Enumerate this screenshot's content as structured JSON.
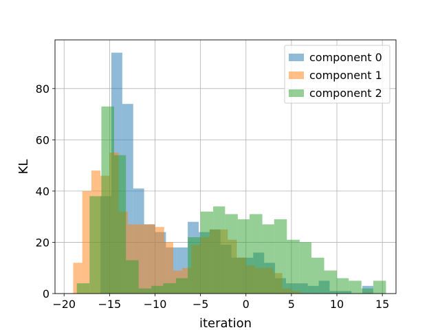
{
  "chart_data": {
    "type": "bar",
    "xlabel": "iteration",
    "ylabel": "KL",
    "xlim": [
      -21,
      16.5
    ],
    "ylim": [
      0,
      99
    ],
    "xticks": [
      -20,
      -15,
      -10,
      -5,
      0,
      5,
      10,
      15
    ],
    "yticks": [
      0,
      20,
      40,
      60,
      80
    ],
    "grid": true,
    "legend_position": "top-right",
    "opacity": 0.5,
    "series": [
      {
        "name": "component 0",
        "color": "#1f77b4",
        "bins": [
          [
            -16.0,
            -14.8,
            38
          ],
          [
            -14.8,
            -13.6,
            94
          ],
          [
            -13.6,
            -12.4,
            74
          ],
          [
            -12.4,
            -11.2,
            41
          ],
          [
            -11.2,
            -10.0,
            27
          ],
          [
            -10.0,
            -8.8,
            24
          ],
          [
            -8.8,
            -7.6,
            18
          ],
          [
            -7.6,
            -6.4,
            18
          ],
          [
            -6.4,
            -5.2,
            28
          ],
          [
            -5.2,
            -4.0,
            24
          ],
          [
            -4.0,
            -2.8,
            25
          ],
          [
            -2.8,
            -1.6,
            19
          ],
          [
            -1.6,
            -0.4,
            14
          ],
          [
            -0.4,
            0.8,
            14
          ],
          [
            0.8,
            2.0,
            16
          ],
          [
            2.0,
            3.2,
            12
          ],
          [
            3.2,
            4.4,
            6
          ],
          [
            4.4,
            5.6,
            4
          ],
          [
            5.6,
            6.8,
            4
          ],
          [
            6.8,
            8.0,
            3
          ],
          [
            8.0,
            9.2,
            5
          ],
          [
            9.2,
            10.4,
            1
          ],
          [
            10.4,
            11.6,
            1
          ],
          [
            11.6,
            12.8,
            0
          ],
          [
            12.8,
            14.0,
            3
          ]
        ]
      },
      {
        "name": "component 1",
        "color": "#ff7f0e",
        "bins": [
          [
            -19.0,
            -18.0,
            12
          ],
          [
            -18.0,
            -17.0,
            40
          ],
          [
            -17.0,
            -16.0,
            48
          ],
          [
            -16.0,
            -15.0,
            46
          ],
          [
            -15.0,
            -14.0,
            55
          ],
          [
            -14.0,
            -13.0,
            32
          ],
          [
            -13.0,
            -12.0,
            27
          ],
          [
            -12.0,
            -11.0,
            27
          ],
          [
            -11.0,
            -10.0,
            27
          ],
          [
            -10.0,
            -9.0,
            26
          ],
          [
            -9.0,
            -8.0,
            20
          ],
          [
            -8.0,
            -7.0,
            9
          ],
          [
            -7.0,
            -6.0,
            10
          ],
          [
            -6.0,
            -5.0,
            19
          ],
          [
            -5.0,
            -4.0,
            22
          ],
          [
            -4.0,
            -3.0,
            25
          ],
          [
            -3.0,
            -2.0,
            25
          ],
          [
            -2.0,
            -1.0,
            21
          ],
          [
            -1.0,
            0.0,
            14
          ],
          [
            0.0,
            1.0,
            11
          ],
          [
            1.0,
            2.0,
            10
          ],
          [
            2.0,
            3.0,
            10
          ],
          [
            3.0,
            4.0,
            8
          ],
          [
            4.0,
            5.0,
            2
          ],
          [
            5.0,
            6.0,
            1
          ]
        ]
      },
      {
        "name": "component 2",
        "color": "#2ca02c",
        "bins": [
          [
            -18.6,
            -17.2,
            4
          ],
          [
            -17.2,
            -15.9,
            38
          ],
          [
            -15.9,
            -14.5,
            73
          ],
          [
            -14.5,
            -13.2,
            54
          ],
          [
            -13.2,
            -11.8,
            13
          ],
          [
            -11.8,
            -10.4,
            2
          ],
          [
            -10.4,
            -9.1,
            3
          ],
          [
            -9.1,
            -7.7,
            4
          ],
          [
            -7.7,
            -6.4,
            6
          ],
          [
            -6.4,
            -5.0,
            22
          ],
          [
            -5.0,
            -3.6,
            32
          ],
          [
            -3.6,
            -2.3,
            34
          ],
          [
            -2.3,
            -0.9,
            31
          ],
          [
            -0.9,
            0.4,
            29
          ],
          [
            0.4,
            1.8,
            31
          ],
          [
            1.8,
            3.1,
            27
          ],
          [
            3.1,
            4.5,
            29
          ],
          [
            4.5,
            5.9,
            21
          ],
          [
            5.9,
            7.2,
            20
          ],
          [
            7.2,
            8.6,
            14
          ],
          [
            8.6,
            10.0,
            9
          ],
          [
            10.0,
            11.3,
            6
          ],
          [
            11.3,
            12.7,
            5
          ],
          [
            12.7,
            14.0,
            2
          ],
          [
            14.0,
            15.4,
            5
          ]
        ]
      }
    ]
  }
}
